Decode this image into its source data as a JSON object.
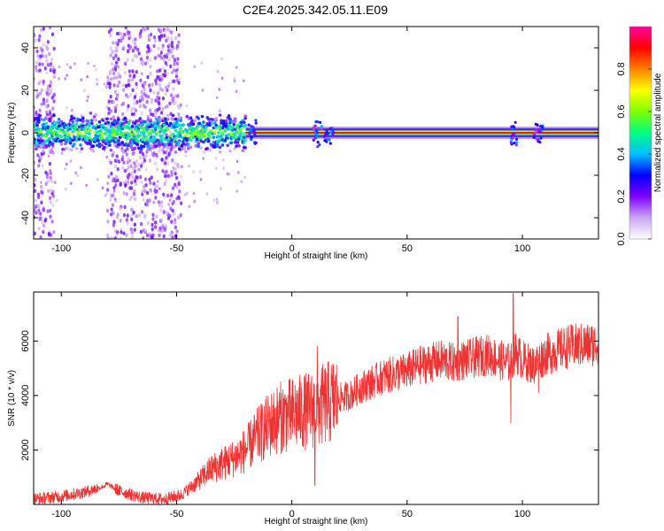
{
  "title": "C2E4.2025.342.05.11.E09",
  "chart_data": [
    {
      "type": "heatmap",
      "xlabel": "Height of straight line (km)",
      "ylabel": "Frequency (Hz)",
      "xlim": [
        -112,
        133
      ],
      "ylim": [
        -50,
        50
      ],
      "xticks": [
        -100,
        -50,
        0,
        50,
        100
      ],
      "yticks": [
        -40,
        -20,
        0,
        20,
        40
      ],
      "colorbar": {
        "label": "Normalized spectral amplitude",
        "range": [
          0,
          1
        ],
        "ticks": [
          0.0,
          0.2,
          0.4,
          0.6,
          0.8
        ],
        "tick_labels": [
          "0.0",
          "0.2",
          "0.4",
          "0.6",
          "0.8"
        ],
        "colors": [
          "#ffffff",
          "#c9a6f0",
          "#8000ff",
          "#0000ff",
          "#00c0ff",
          "#00ff80",
          "#80ff00",
          "#ffff00",
          "#ff8000",
          "#ff0000",
          "#ff00a0"
        ]
      },
      "signal": {
        "frequency_hz": 0,
        "strong_band_x_range": [
          -20,
          133
        ],
        "noisy_band_x_range": [
          -112,
          -20
        ],
        "scatter_regions_x": [
          [
            -112,
            -103
          ],
          [
            -80,
            -48
          ]
        ]
      }
    },
    {
      "type": "line",
      "xlabel": "Height of straight line (km)",
      "ylabel": "SNR (10 * v/v)",
      "xlim": [
        -112,
        133
      ],
      "ylim": [
        0,
        7800
      ],
      "xticks": [
        -100,
        -50,
        0,
        50,
        100
      ],
      "yticks": [
        2000,
        4000,
        6000
      ],
      "color": "#ee3333",
      "x": [
        -112,
        -100,
        -90,
        -82,
        -80,
        -75,
        -65,
        -55,
        -48,
        -40,
        -35,
        -25,
        -20,
        -15,
        -10,
        -5,
        0,
        5,
        10,
        15,
        20,
        25,
        30,
        40,
        50,
        55,
        60,
        65,
        70,
        75,
        80,
        85,
        90,
        95,
        97,
        100,
        105,
        110,
        120,
        133
      ],
      "values": [
        200,
        300,
        450,
        650,
        750,
        500,
        250,
        200,
        350,
        900,
        1300,
        1700,
        2000,
        2500,
        2900,
        3200,
        3300,
        3400,
        3500,
        3700,
        3900,
        4000,
        4300,
        4700,
        4900,
        5100,
        5200,
        5300,
        5200,
        5300,
        5400,
        5500,
        5300,
        5200,
        5600,
        5300,
        5100,
        5500,
        5800,
        5900
      ],
      "spikes": [
        {
          "x": 10,
          "value": 700
        },
        {
          "x": 11,
          "value": 5800
        },
        {
          "x": 72,
          "value": 6900
        },
        {
          "x": 95,
          "value": 3000
        },
        {
          "x": 96,
          "value": 7750
        },
        {
          "x": 107,
          "value": 4100
        }
      ]
    }
  ]
}
